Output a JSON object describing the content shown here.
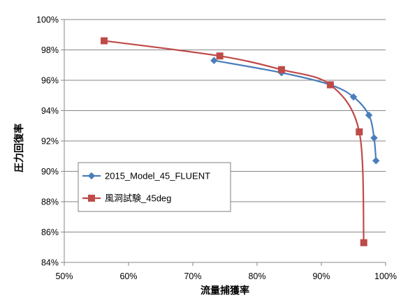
{
  "chart_data": {
    "type": "line",
    "title": "",
    "xlabel": "流量捕獲率",
    "ylabel": "圧力回復率",
    "xlim": [
      50,
      100
    ],
    "ylim": [
      84,
      100
    ],
    "x_ticks": [
      "50%",
      "60%",
      "70%",
      "80%",
      "90%",
      "100%"
    ],
    "y_ticks": [
      "84%",
      "86%",
      "88%",
      "90%",
      "92%",
      "94%",
      "96%",
      "98%",
      "100%"
    ],
    "grid": "horizontal",
    "legend_position": "left-middle inside plot",
    "series": [
      {
        "name": "2015_Model_45_FLUENT",
        "color": "#4a7ebb",
        "marker": "diamond",
        "points": [
          {
            "x": 73.3,
            "y": 97.3
          },
          {
            "x": 83.8,
            "y": 96.5
          },
          {
            "x": 91.4,
            "y": 95.7
          },
          {
            "x": 95.0,
            "y": 94.9
          },
          {
            "x": 97.4,
            "y": 93.7
          },
          {
            "x": 98.2,
            "y": 92.2
          },
          {
            "x": 98.5,
            "y": 90.7
          }
        ]
      },
      {
        "name": "風洞試験_45deg",
        "color": "#be4b48",
        "marker": "square",
        "points": [
          {
            "x": 56.2,
            "y": 98.6
          },
          {
            "x": 74.2,
            "y": 97.6
          },
          {
            "x": 83.8,
            "y": 96.7
          },
          {
            "x": 91.4,
            "y": 95.7
          },
          {
            "x": 95.9,
            "y": 92.6
          },
          {
            "x": 96.6,
            "y": 85.3
          }
        ]
      }
    ]
  }
}
